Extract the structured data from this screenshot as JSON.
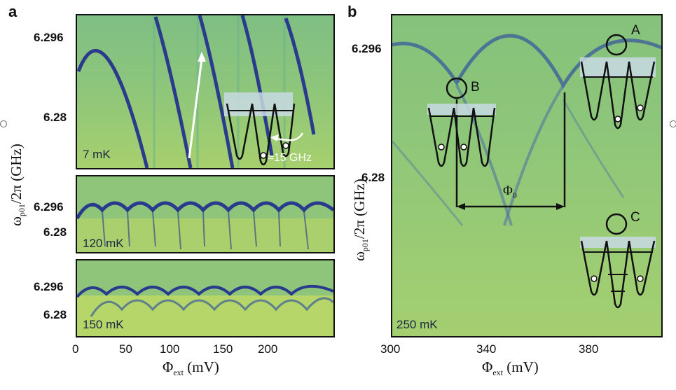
{
  "panel_a": {
    "letter": "a",
    "top": {
      "temperature": "7 mK",
      "yticks": [
        "6.296",
        "6.28"
      ],
      "annotation": "≈15 GHz"
    },
    "middle": {
      "temperature": "120 mK",
      "yticks": [
        "6.296",
        "6.28"
      ]
    },
    "bottom": {
      "temperature": "150 mK",
      "yticks": [
        "6.296",
        "6.28"
      ]
    },
    "xticks": [
      "0",
      "50",
      "100",
      "150",
      "200"
    ],
    "xlabel": "Φext (mV)",
    "ylabel": "ωp01/2π (GHz)"
  },
  "panel_b": {
    "letter": "b",
    "temperature": "250 mK",
    "yticks": [
      "6.296",
      "6.28"
    ],
    "xticks": [
      "300",
      "340",
      "380"
    ],
    "xlabel": "Φext (mV)",
    "ylabel": "ωp01/2π (GHz)",
    "labels": {
      "A": "A",
      "B": "B",
      "C": "C",
      "flux_quantum": "Φ0"
    }
  }
}
